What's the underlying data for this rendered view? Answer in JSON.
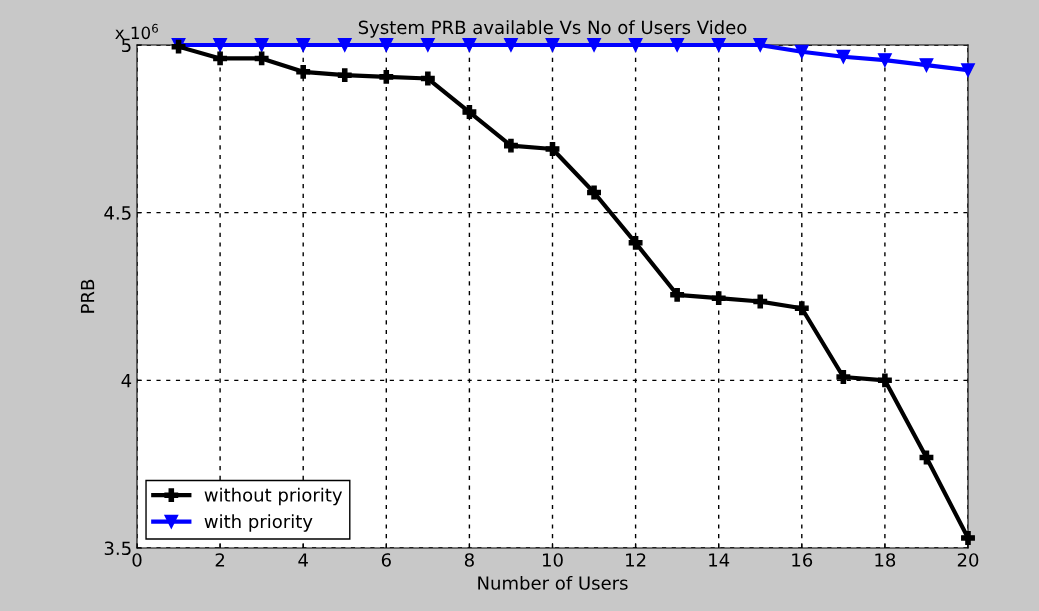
{
  "chart_data": {
    "type": "line",
    "title": "System PRB available Vs No of Users Video",
    "xlabel": "Number of Users",
    "ylabel": "PRB",
    "annotations": [
      "x 10$^{6}$"
    ],
    "x": [
      1,
      2,
      3,
      4,
      5,
      6,
      7,
      8,
      9,
      10,
      11,
      12,
      13,
      14,
      15,
      16,
      17,
      18,
      19,
      20
    ],
    "series": [
      {
        "name": "without priority",
        "color": "#000000",
        "marker": "cross",
        "values": [
          4.995,
          4.96,
          4.96,
          4.92,
          4.91,
          4.905,
          4.9,
          4.8,
          4.7,
          4.69,
          4.56,
          4.41,
          4.255,
          4.245,
          4.235,
          4.215,
          4.01,
          4.0,
          3.77,
          3.53
        ]
      },
      {
        "name": "with priority",
        "color": "#0000ff",
        "marker": "triangle",
        "values": [
          5.0,
          5.0,
          5.0,
          5.0,
          5.0,
          5.0,
          5.0,
          5.0,
          5.0,
          5.0,
          5.0,
          5.0,
          5.0,
          5.0,
          5.0,
          4.98,
          4.965,
          4.955,
          4.94,
          4.925
        ]
      }
    ],
    "xlim": [
      0,
      20
    ],
    "xticks": [
      0,
      2,
      4,
      6,
      8,
      10,
      12,
      14,
      16,
      18,
      20
    ],
    "ylim": [
      3.5,
      5
    ],
    "yticks": [
      3.5,
      4,
      4.5,
      5
    ],
    "grid": true,
    "legend": "bottom left",
    "line_style": "solid"
  }
}
